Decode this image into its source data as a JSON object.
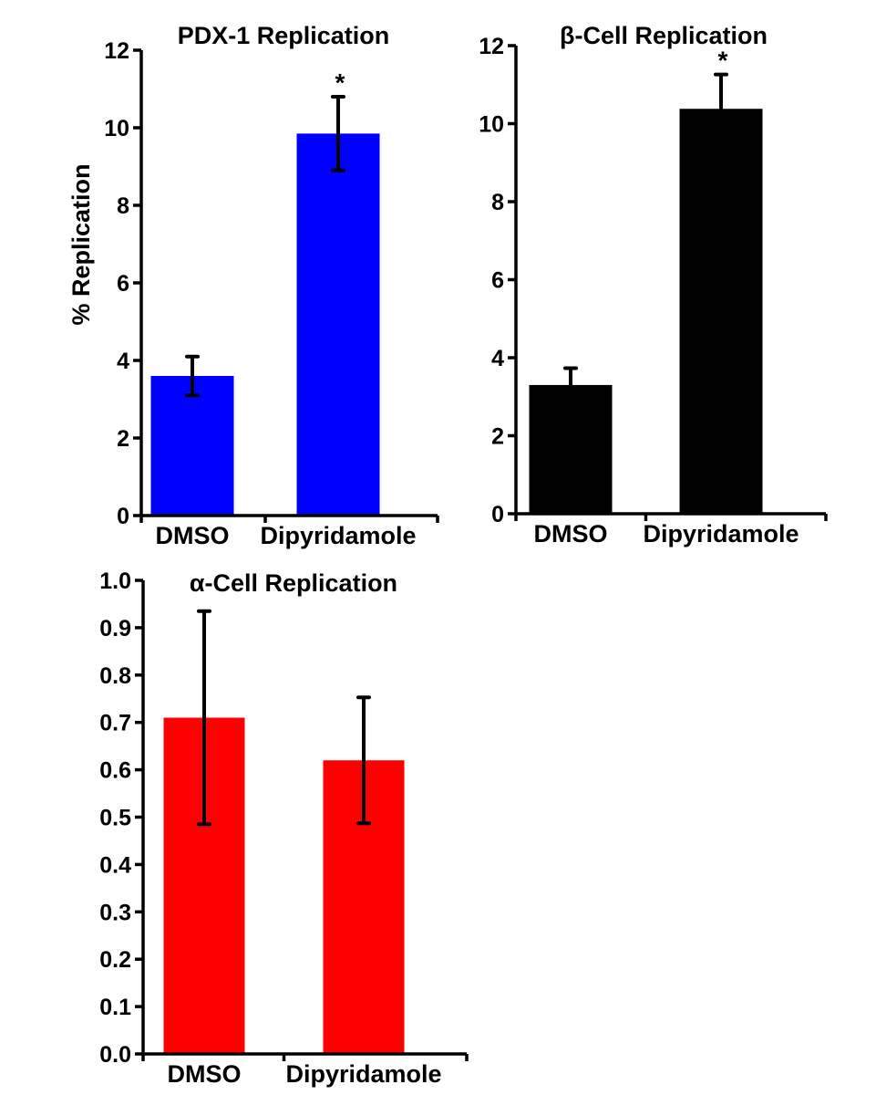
{
  "chart_data": [
    {
      "type": "bar",
      "title": "PDX-1 Replication",
      "xlabel": "",
      "ylabel": "% Replication",
      "categories": [
        "DMSO",
        "Dipyridamole"
      ],
      "values": [
        3.6,
        9.85
      ],
      "errors": [
        0.5,
        0.95
      ],
      "annotations": [
        "",
        "*"
      ],
      "ylim": [
        0,
        12
      ],
      "yticks": [
        "0",
        "2",
        "4",
        "6",
        "8",
        "10",
        "12"
      ],
      "color": "#0000FF",
      "grid": false
    },
    {
      "type": "bar",
      "title": "β-Cell Replication",
      "xlabel": "",
      "ylabel": "",
      "categories": [
        "DMSO",
        "Dipyridamole"
      ],
      "values": [
        3.3,
        10.38
      ],
      "errors": [
        0.43,
        0.88
      ],
      "annotations": [
        "",
        "*"
      ],
      "ylim": [
        0,
        12
      ],
      "yticks": [
        "0",
        "2",
        "4",
        "6",
        "8",
        "10",
        "12"
      ],
      "color": "#000000",
      "grid": false
    },
    {
      "type": "bar",
      "title": "α-Cell Replication",
      "xlabel": "",
      "ylabel": "",
      "categories": [
        "DMSO",
        "Dipyridamole"
      ],
      "values": [
        0.71,
        0.62
      ],
      "errors": [
        0.225,
        0.133
      ],
      "annotations": [
        "",
        ""
      ],
      "ylim": [
        0,
        1.0
      ],
      "yticks": [
        "0.0",
        "0.1",
        "0.2",
        "0.3",
        "0.4",
        "0.5",
        "0.6",
        "0.7",
        "0.8",
        "0.9",
        "1.0"
      ],
      "color": "#FF0000",
      "grid": false
    }
  ]
}
